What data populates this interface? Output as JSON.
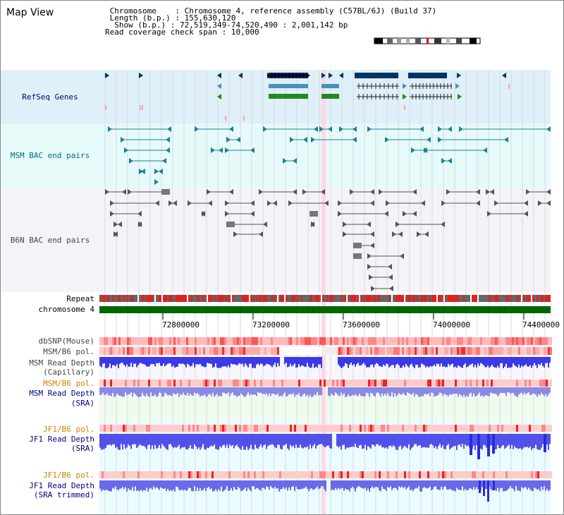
{
  "header": {
    "app_title": "Map View",
    "chromosome_key": "Chromosome",
    "chromosome_value": "Chromosome 4, reference assembly (C57BL/6J) (Build 37)",
    "length_key": "Length (b.p.)",
    "length_value": "155,630,120",
    "show_key": "Show (b.p.)",
    "show_value": "72,519,349-74,520,490 : 2,001,142 bp",
    "coverage_key": "Read coverage check span",
    "coverage_value": "10,000"
  },
  "tracks": {
    "refseq": "RefSeq Genes",
    "msm_bac": "MSM BAC end pairs",
    "b6n_bac": "B6N BAC end pairs",
    "repeat": "Repeat",
    "chromosome": "chromosome 4",
    "dbsnp": "dbSNP(Mouse)",
    "msm_b6_pol_1": "MSM/B6 pol.",
    "msm_depth_cap_1": "MSM Read Depth",
    "msm_depth_cap_2": "(Capillary)",
    "msm_b6_pol_2": "MSM/B6 pol.",
    "msm_depth_sra_1": "MSM Read Depth",
    "msm_depth_sra_2": "(SRA)",
    "jf1_b6_pol_1": "JF1/B6 pol.",
    "jf1_depth_sra_1": "JF1 Read Depth",
    "jf1_depth_sra_2": "(SRA)",
    "jf1_b6_pol_2": "JF1/B6 pol.",
    "jf1_depth_trim_1": "JF1 Read Depth",
    "jf1_depth_trim_2": "(SRA trimmed)"
  },
  "axis": {
    "ticks": [
      "72800000",
      "73200000",
      "73600000",
      "74000000",
      "74400000"
    ]
  },
  "colors": {
    "refseq_bg": "#dff0f8",
    "msm_bg": "#e6fafa",
    "b6n_bg": "#f4f4f8",
    "chromosome": "#006600",
    "repeat_red": "#dd2222",
    "depth_blue": "#3333ee",
    "depth_light": "#8888ee",
    "highlight_pink": "#ffd8e4"
  }
}
